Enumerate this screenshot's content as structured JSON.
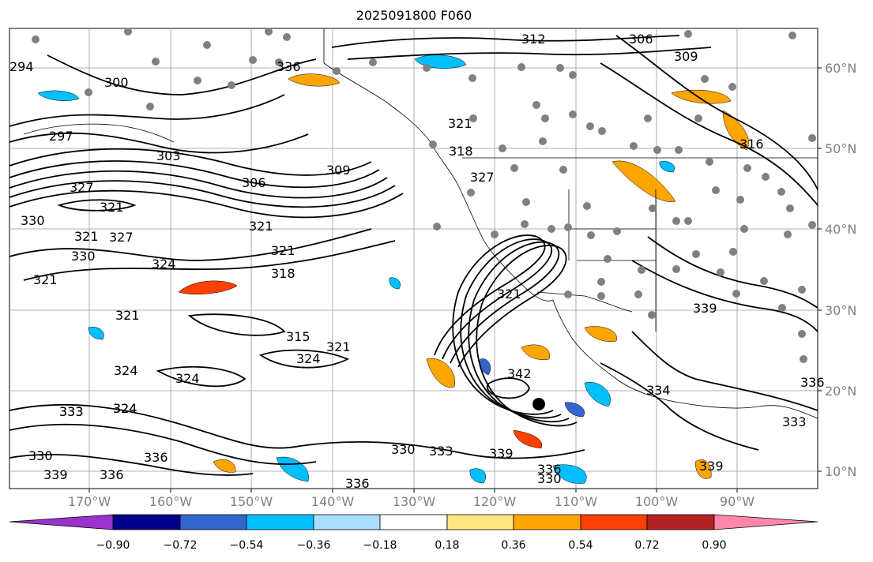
{
  "title": "2025091800 F060",
  "lat_labels": [
    "60°N",
    "50°N",
    "40°N",
    "30°N",
    "20°N",
    "10°N"
  ],
  "lon_labels": [
    "170°W",
    "160°W",
    "150°W",
    "140°W",
    "130°W",
    "120°W",
    "110°W",
    "100°W",
    "90°W"
  ],
  "colorbar": {
    "labels": [
      "−0.90",
      "−0.72",
      "−0.54",
      "−0.36",
      "−0.18",
      "0.18",
      "0.36",
      "0.54",
      "0.72",
      "0.90"
    ],
    "colors": [
      "#9933cc",
      "#00008b",
      "#3366cc",
      "#00bfff",
      "#aadeff",
      "#ffffff",
      "#ffe680",
      "#ffa500",
      "#ff4000",
      "#b22222",
      "#ff88aa"
    ]
  },
  "contour_labels": [
    "294",
    "300",
    "297",
    "303",
    "306",
    "309",
    "312",
    "306",
    "309",
    "316",
    "327",
    "321",
    "330",
    "321",
    "327",
    "330",
    "324",
    "321",
    "321",
    "318",
    "321",
    "321",
    "315",
    "324",
    "321",
    "324",
    "324",
    "324",
    "333",
    "324",
    "330",
    "342",
    "321",
    "334",
    "336",
    "333",
    "330",
    "333",
    "339",
    "336",
    "339",
    "330",
    "336",
    "336",
    "339",
    "333",
    "336",
    "339",
    "327",
    "321",
    "318",
    "336"
  ],
  "colors": {
    "station_dots": "#808080",
    "ocean_contour": "#000000",
    "grid": "#999999",
    "axis_text": "#808080",
    "marker": "#000000"
  }
}
